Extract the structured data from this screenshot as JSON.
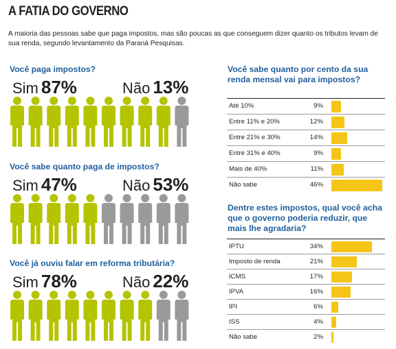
{
  "header": {
    "title": "A FATIA DO GOVERNO",
    "intro": "A maioria das pessoas sabe que paga impostos, mas são poucas as que conseguem dizer quanto os tributos levam de sua renda, segundo levantamento da Paraná Pesquisas."
  },
  "colors": {
    "yes": "#b5c400",
    "no": "#9a9a9a",
    "bar": "#f5c518",
    "question": "#1f5f9e"
  },
  "polls": [
    {
      "question": "Você paga impostos?",
      "yes_label": "Sim",
      "yes_pct": "87%",
      "no_label": "Não",
      "no_pct": "13%",
      "yes_fraction": 0.87
    },
    {
      "question": "Você sabe quanto paga de impostos?",
      "yes_label": "Sim",
      "yes_pct": "47%",
      "no_label": "Não",
      "no_pct": "53%",
      "yes_fraction": 0.47
    },
    {
      "question": "Você já ouviu falar em reforma tributária?",
      "yes_label": "Sim",
      "yes_pct": "78%",
      "no_label": "Não",
      "no_pct": "22%",
      "yes_fraction": 0.78
    }
  ],
  "chart_data": [
    {
      "type": "bar",
      "title": "Você sabe quanto por cento da sua renda mensal vai para impostos?",
      "categories": [
        "Até 10%",
        "Entre 11% e 20%",
        "Entre 21% e 30%",
        "Entre 31% e 40%",
        "Mais de 40%",
        "Não sabe"
      ],
      "values": [
        9,
        12,
        14,
        9,
        11,
        46
      ],
      "labels": [
        "9%",
        "12%",
        "14%",
        "9%",
        "11%",
        "46%"
      ]
    },
    {
      "type": "bar",
      "title": "Dentre estes impostos, qual você acha que o governo poderia reduzir, que mais lhe agradaria?",
      "categories": [
        "IPTU",
        "Imposto de renda",
        "ICMS",
        "IPVA",
        "IPI",
        "ISS",
        "Não sabe"
      ],
      "values": [
        34,
        21,
        17,
        16,
        6,
        4,
        2
      ],
      "labels": [
        "34%",
        "21%",
        "17%",
        "16%",
        "6%",
        "4%",
        "2%"
      ]
    }
  ]
}
